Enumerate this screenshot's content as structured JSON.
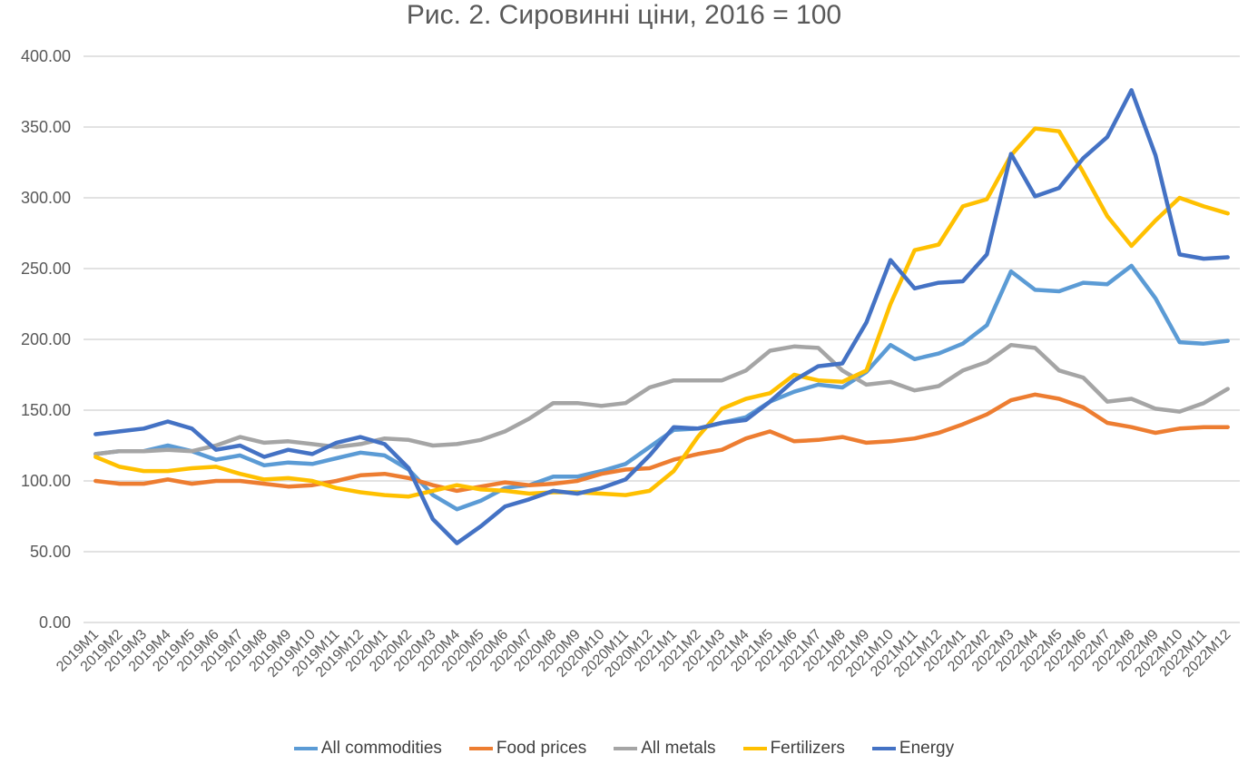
{
  "chart_data": {
    "type": "line",
    "title": "Рис. 2. Сировинні ціни, 2016 = 100",
    "xlabel": "",
    "ylabel": "",
    "ylim": [
      0,
      400
    ],
    "y_ticks": [
      "0.00",
      "50.00",
      "100.00",
      "150.00",
      "200.00",
      "250.00",
      "300.00",
      "350.00",
      "400.00"
    ],
    "grid": true,
    "legend_position": "bottom",
    "categories": [
      "2019M1",
      "2019M2",
      "2019M3",
      "2019M4",
      "2019M5",
      "2019M6",
      "2019M7",
      "2019M8",
      "2019M9",
      "2019M10",
      "2019M11",
      "2019M12",
      "2020M1",
      "2020M2",
      "2020M3",
      "2020M4",
      "2020M5",
      "2020M6",
      "2020M7",
      "2020M8",
      "2020M9",
      "2020M10",
      "2020M11",
      "2020M12",
      "2021M1",
      "2021M2",
      "2021M3",
      "2021M4",
      "2021M5",
      "2021M6",
      "2021M7",
      "2021M8",
      "2021M9",
      "2021M10",
      "2021M11",
      "2021M12",
      "2022M1",
      "2022M2",
      "2022M3",
      "2022M4",
      "2022M5",
      "2022M6",
      "2022M7",
      "2022M8",
      "2022M9",
      "2022M10",
      "2022M11",
      "2022M12"
    ],
    "series": [
      {
        "name": "All commodities",
        "color": "#5B9BD5",
        "values": [
          119,
          121,
          121,
          125,
          121,
          115,
          118,
          111,
          113,
          112,
          116,
          120,
          118,
          108,
          90,
          80,
          86,
          95,
          97,
          103,
          103,
          107,
          112,
          124,
          136,
          137,
          141,
          145,
          156,
          163,
          168,
          166,
          177,
          196,
          186,
          190,
          197,
          210,
          248,
          235,
          234,
          240,
          239,
          252,
          229,
          198,
          197,
          199
        ]
      },
      {
        "name": "Food prices",
        "color": "#ED7D31",
        "values": [
          100,
          98,
          98,
          101,
          98,
          100,
          100,
          98,
          96,
          97,
          100,
          104,
          105,
          102,
          97,
          93,
          96,
          99,
          97,
          98,
          100,
          105,
          108,
          109,
          115,
          119,
          122,
          130,
          135,
          128,
          129,
          131,
          127,
          128,
          130,
          134,
          140,
          147,
          157,
          161,
          158,
          152,
          141,
          138,
          134,
          137,
          138,
          138
        ]
      },
      {
        "name": "All metals",
        "color": "#A5A5A5",
        "values": [
          119,
          121,
          121,
          122,
          121,
          125,
          131,
          127,
          128,
          126,
          124,
          126,
          130,
          129,
          125,
          126,
          129,
          135,
          144,
          155,
          155,
          153,
          155,
          166,
          171,
          171,
          171,
          178,
          192,
          195,
          194,
          178,
          168,
          170,
          164,
          167,
          178,
          184,
          196,
          194,
          178,
          173,
          156,
          158,
          151,
          149,
          155,
          165
        ]
      },
      {
        "name": "Fertilizers",
        "color": "#FFC000",
        "values": [
          117,
          110,
          107,
          107,
          109,
          110,
          105,
          101,
          102,
          100,
          95,
          92,
          90,
          89,
          93,
          97,
          94,
          93,
          91,
          92,
          92,
          91,
          90,
          93,
          107,
          131,
          151,
          158,
          162,
          175,
          171,
          170,
          178,
          225,
          263,
          267,
          294,
          299,
          330,
          349,
          347,
          318,
          287,
          266,
          284,
          300,
          294,
          289
        ]
      },
      {
        "name": "Energy",
        "color": "#4472C4",
        "values": [
          133,
          135,
          137,
          142,
          137,
          122,
          125,
          117,
          122,
          119,
          127,
          131,
          126,
          109,
          73,
          56,
          68,
          82,
          87,
          93,
          91,
          95,
          101,
          118,
          138,
          137,
          141,
          143,
          156,
          171,
          181,
          183,
          212,
          256,
          236,
          240,
          241,
          260,
          331,
          301,
          307,
          328,
          343,
          376,
          330,
          260,
          257,
          258
        ]
      }
    ]
  }
}
